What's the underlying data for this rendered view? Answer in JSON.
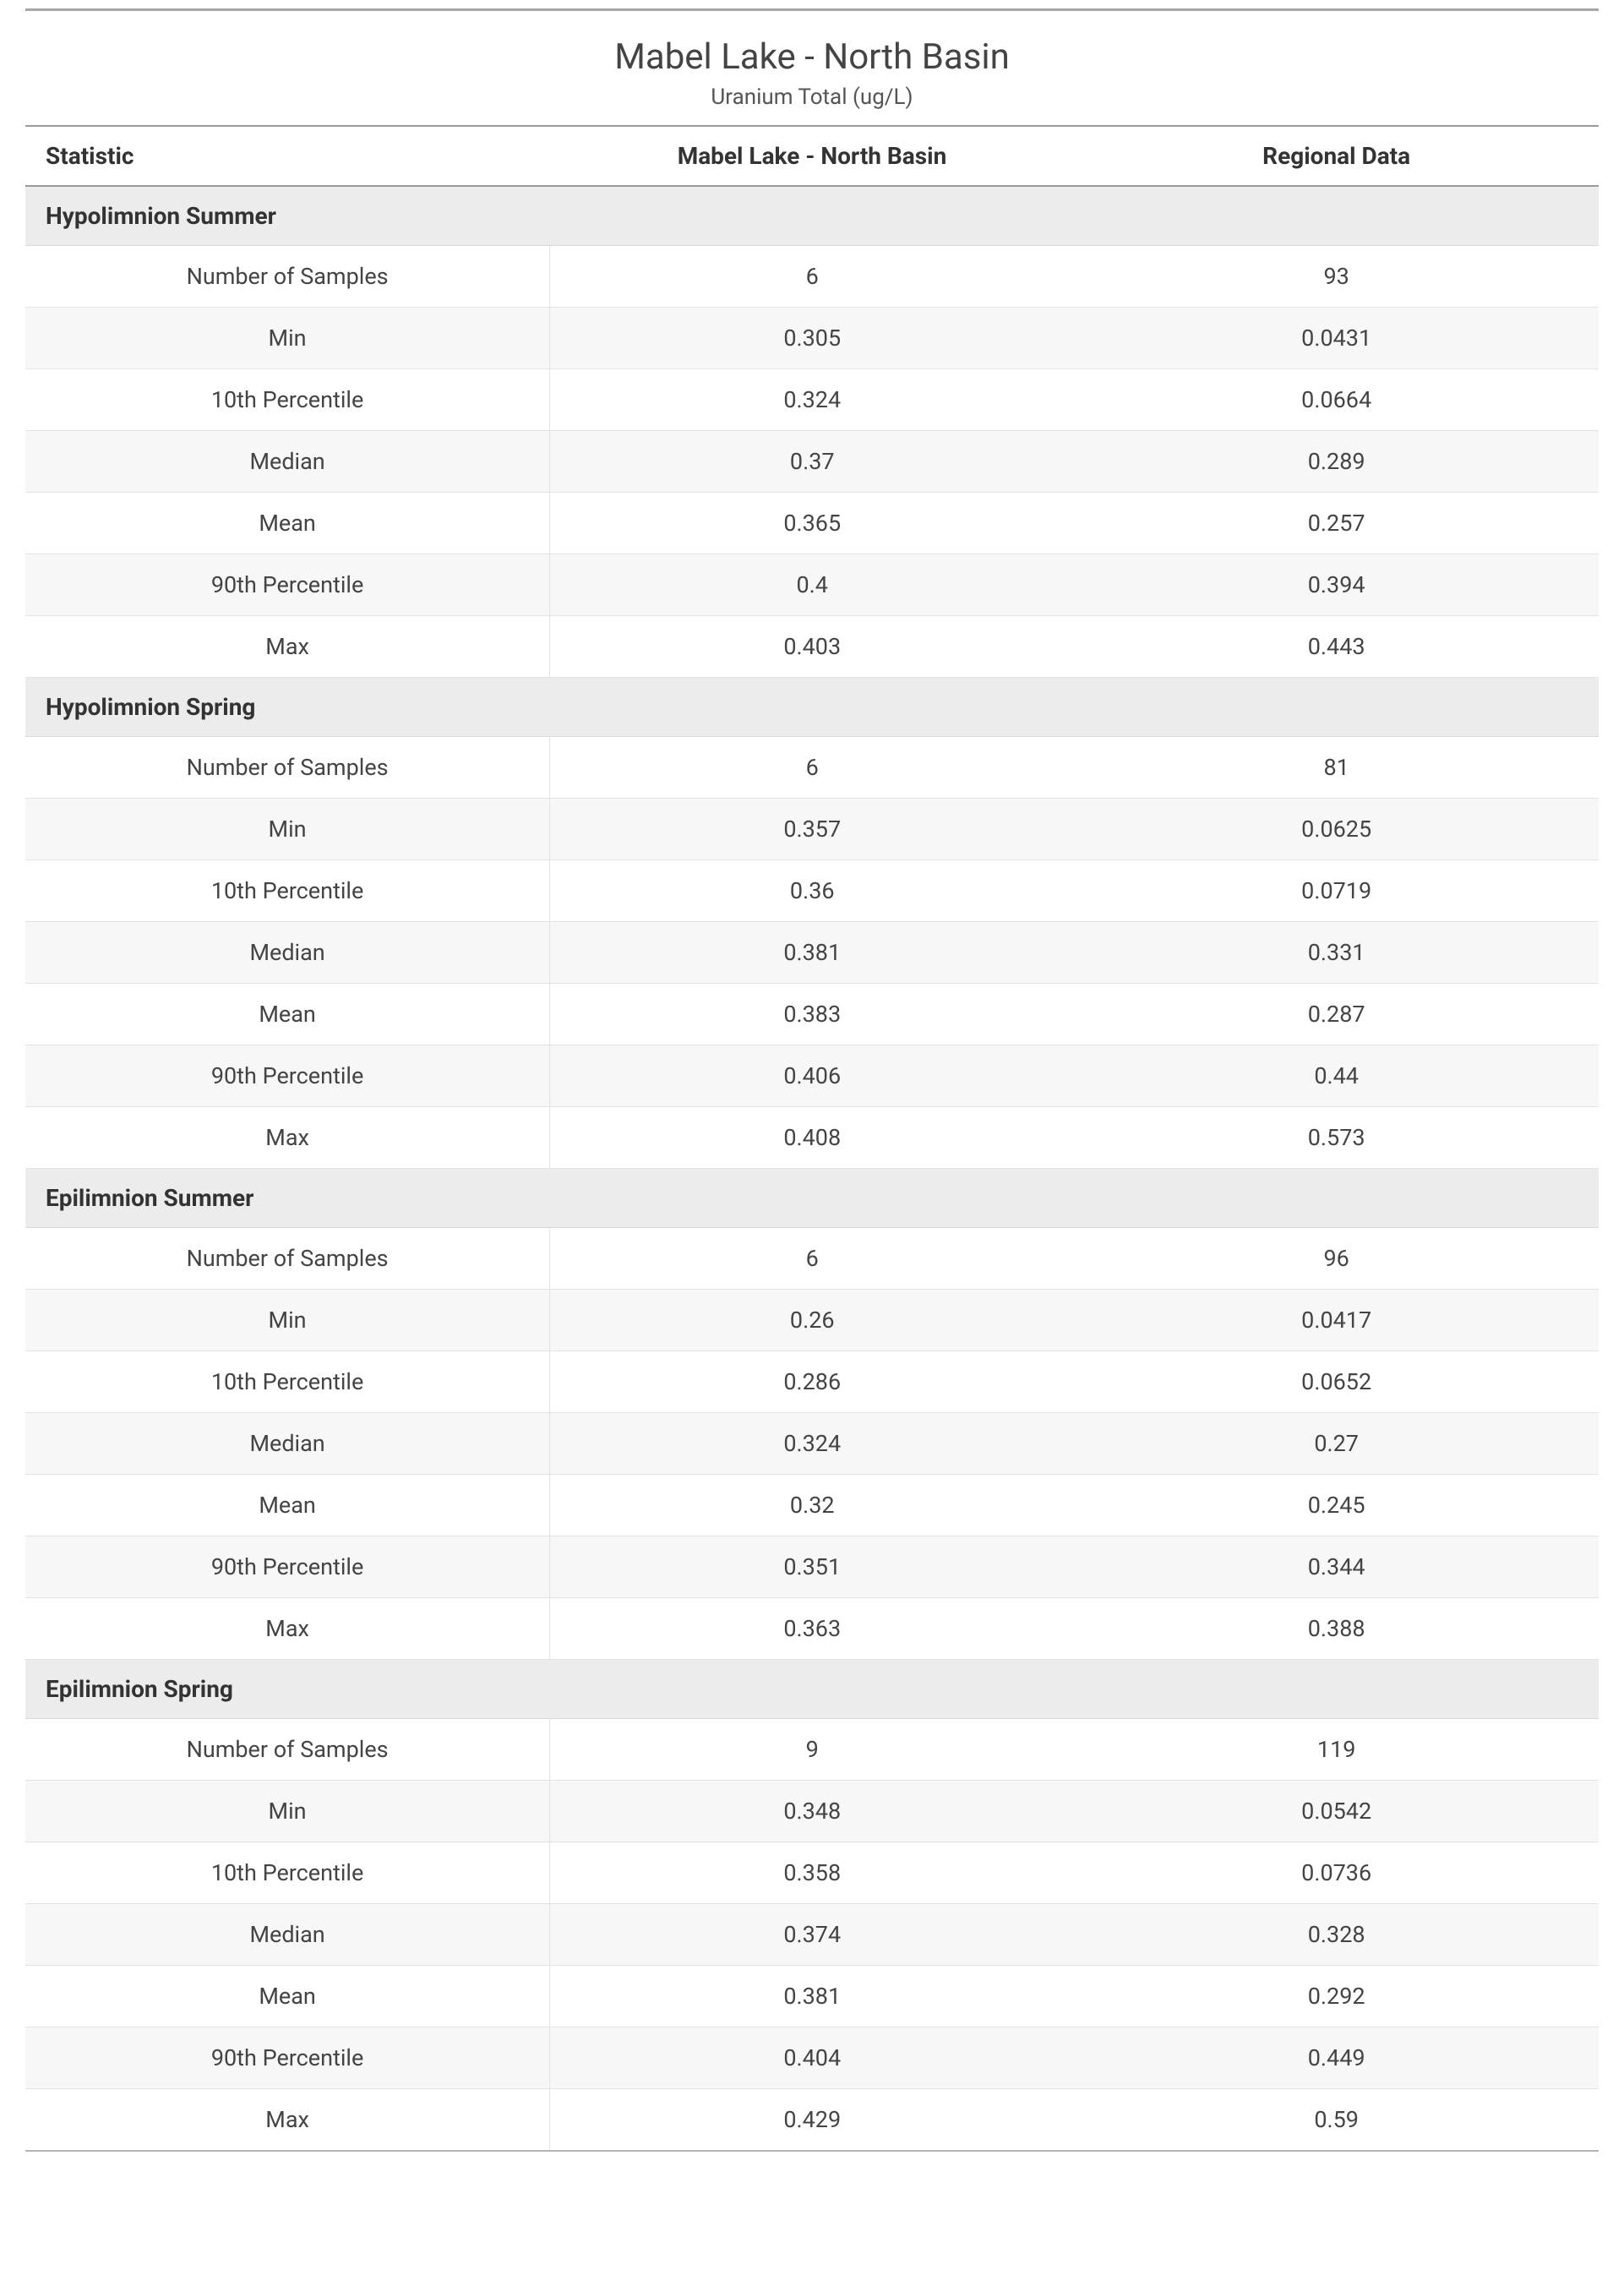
{
  "header": {
    "title": "Mabel Lake - North Basin",
    "subtitle": "Uranium Total (ug/L)"
  },
  "columns": {
    "stat": "Statistic",
    "site": "Mabel Lake - North Basin",
    "regional": "Regional Data"
  },
  "colors": {
    "page_bg": "#ffffff",
    "text": "#333333",
    "section_bg": "#ececec",
    "row_alt_bg": "#f7f7f7",
    "border": "#e3e3e3",
    "header_border": "#9a9a9a",
    "top_rule": "#a6a6a6"
  },
  "sections": [
    {
      "title": "Hypolimnion Summer",
      "rows": [
        {
          "stat": "Number of Samples",
          "site": "6",
          "regional": "93"
        },
        {
          "stat": "Min",
          "site": "0.305",
          "regional": "0.0431"
        },
        {
          "stat": "10th Percentile",
          "site": "0.324",
          "regional": "0.0664"
        },
        {
          "stat": "Median",
          "site": "0.37",
          "regional": "0.289"
        },
        {
          "stat": "Mean",
          "site": "0.365",
          "regional": "0.257"
        },
        {
          "stat": "90th Percentile",
          "site": "0.4",
          "regional": "0.394"
        },
        {
          "stat": "Max",
          "site": "0.403",
          "regional": "0.443"
        }
      ]
    },
    {
      "title": "Hypolimnion Spring",
      "rows": [
        {
          "stat": "Number of Samples",
          "site": "6",
          "regional": "81"
        },
        {
          "stat": "Min",
          "site": "0.357",
          "regional": "0.0625"
        },
        {
          "stat": "10th Percentile",
          "site": "0.36",
          "regional": "0.0719"
        },
        {
          "stat": "Median",
          "site": "0.381",
          "regional": "0.331"
        },
        {
          "stat": "Mean",
          "site": "0.383",
          "regional": "0.287"
        },
        {
          "stat": "90th Percentile",
          "site": "0.406",
          "regional": "0.44"
        },
        {
          "stat": "Max",
          "site": "0.408",
          "regional": "0.573"
        }
      ]
    },
    {
      "title": "Epilimnion Summer",
      "rows": [
        {
          "stat": "Number of Samples",
          "site": "6",
          "regional": "96"
        },
        {
          "stat": "Min",
          "site": "0.26",
          "regional": "0.0417"
        },
        {
          "stat": "10th Percentile",
          "site": "0.286",
          "regional": "0.0652"
        },
        {
          "stat": "Median",
          "site": "0.324",
          "regional": "0.27"
        },
        {
          "stat": "Mean",
          "site": "0.32",
          "regional": "0.245"
        },
        {
          "stat": "90th Percentile",
          "site": "0.351",
          "regional": "0.344"
        },
        {
          "stat": "Max",
          "site": "0.363",
          "regional": "0.388"
        }
      ]
    },
    {
      "title": "Epilimnion Spring",
      "rows": [
        {
          "stat": "Number of Samples",
          "site": "9",
          "regional": "119"
        },
        {
          "stat": "Min",
          "site": "0.348",
          "regional": "0.0542"
        },
        {
          "stat": "10th Percentile",
          "site": "0.358",
          "regional": "0.0736"
        },
        {
          "stat": "Median",
          "site": "0.374",
          "regional": "0.328"
        },
        {
          "stat": "Mean",
          "site": "0.381",
          "regional": "0.292"
        },
        {
          "stat": "90th Percentile",
          "site": "0.404",
          "regional": "0.449"
        },
        {
          "stat": "Max",
          "site": "0.429",
          "regional": "0.59"
        }
      ]
    }
  ]
}
